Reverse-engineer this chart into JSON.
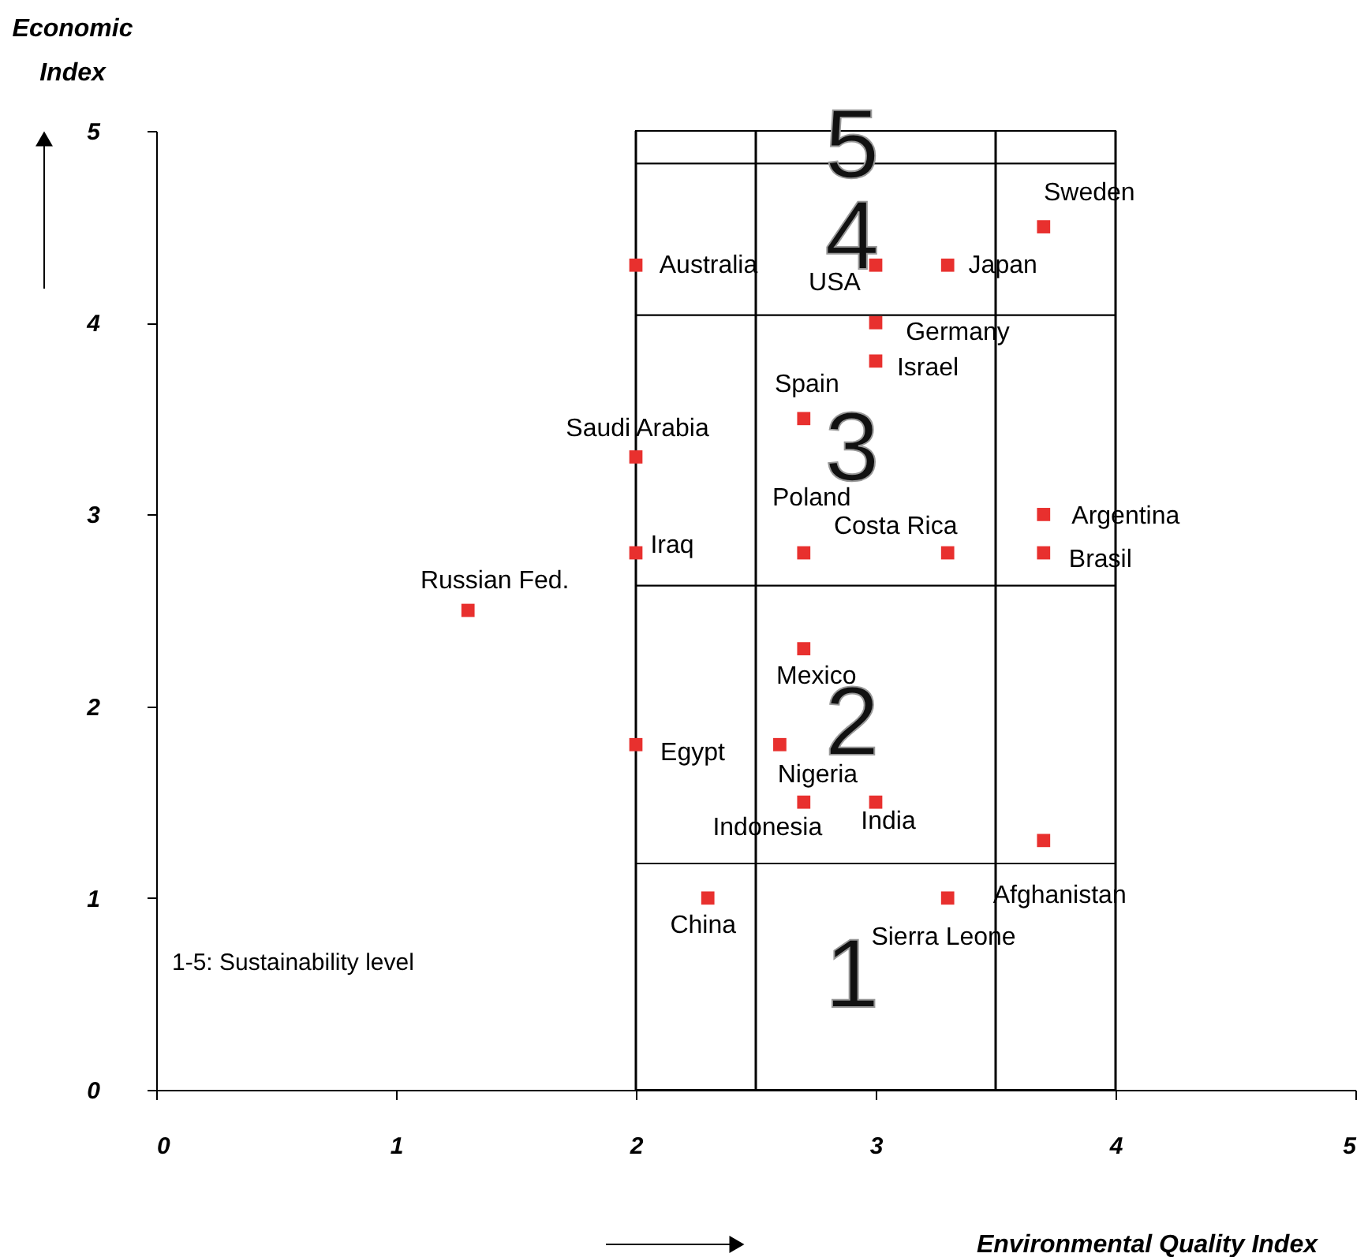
{
  "chart_data": {
    "type": "scatter",
    "xlabel": "Environmental Quality Index",
    "ylabel": "Economic Index",
    "x": [
      2.0,
      3.0,
      3.3,
      3.7,
      3.0,
      3.0,
      2.7,
      2.0,
      3.7,
      3.7,
      2.0,
      2.7,
      3.3,
      1.3,
      2.7,
      2.0,
      2.6,
      2.7,
      3.0,
      3.7,
      3.3,
      2.3
    ],
    "values": [
      4.3,
      4.3,
      4.3,
      4.5,
      4.0,
      3.8,
      3.5,
      3.3,
      3.0,
      2.8,
      2.8,
      2.8,
      2.8,
      2.5,
      2.3,
      1.8,
      1.8,
      1.5,
      1.5,
      1.3,
      1.0,
      1.0
    ],
    "value_labels": [
      "Australia",
      "USA",
      "Japan",
      "Sweden",
      "Germany",
      "Israel",
      "Spain",
      "Saudi Arabia",
      "Argentina",
      "Brasil",
      "Iraq",
      "Poland",
      "Costa Rica",
      "Russian Fed.",
      "Mexico",
      "Egypt",
      "Nigeria",
      "Indonesia",
      "India",
      null,
      "Afghanistan",
      "China"
    ],
    "color": "#e8302e",
    "marker": "square",
    "xlim": [
      0,
      5
    ],
    "ylim": [
      0,
      5
    ],
    "xticks": [
      {
        "value": 0,
        "label": "0"
      },
      {
        "value": 1,
        "label": "1"
      },
      {
        "value": 2,
        "label": "2"
      },
      {
        "value": 3,
        "label": "3"
      },
      {
        "value": 4,
        "label": "4"
      },
      {
        "value": 5,
        "label": "5"
      }
    ],
    "yticks": [
      {
        "value": 0,
        "label": "0"
      },
      {
        "value": 1,
        "label": "1"
      },
      {
        "value": 2,
        "label": "2"
      },
      {
        "value": 3,
        "label": "3"
      },
      {
        "value": 4,
        "label": "4"
      },
      {
        "value": 5,
        "label": "5"
      }
    ],
    "grid": false,
    "ref_lines": [
      {
        "axis": "x",
        "value": 2,
        "color": "#000000"
      },
      {
        "axis": "x",
        "value": 2.5,
        "color": "#000000"
      },
      {
        "axis": "x",
        "value": 3.5,
        "color": "#000000"
      },
      {
        "axis": "x",
        "value": 4,
        "color": "#000000"
      }
    ],
    "bands": [
      {
        "axis": "y",
        "from": 0,
        "to": 1.18,
        "label": "1",
        "color": "#ffffff"
      },
      {
        "axis": "y",
        "from": 1.18,
        "to": 2.63,
        "label": "2",
        "color": "#ffffff"
      },
      {
        "axis": "y",
        "from": 2.63,
        "to": 4.04,
        "label": "3",
        "color": "#ffffff"
      },
      {
        "axis": "y",
        "from": 4.04,
        "to": 4.83,
        "label": "4",
        "color": "#ffffff"
      },
      {
        "axis": "y",
        "from": 4.83,
        "to": 5,
        "label": "5",
        "color": "#ffffff"
      }
    ],
    "annotations": [
      "Sierra Leone",
      "1-5: Sustainability level"
    ]
  }
}
